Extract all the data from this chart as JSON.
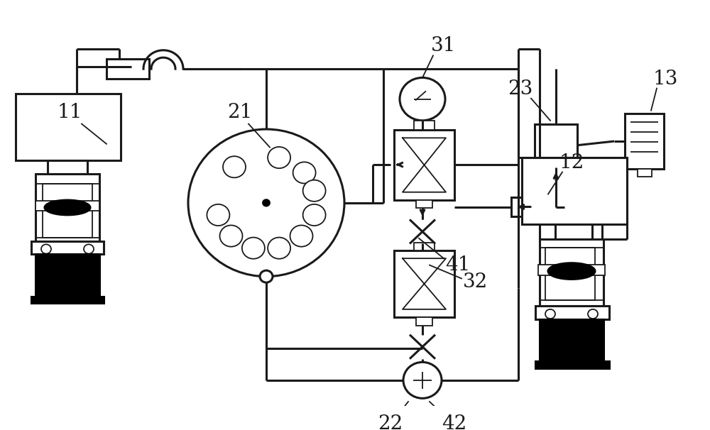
{
  "bg_color": "#ffffff",
  "line_color": "#1a1a1a",
  "lw": 2.2,
  "tlw": 1.3,
  "label_fontsize": 20,
  "label_color": "#1a1a1a"
}
